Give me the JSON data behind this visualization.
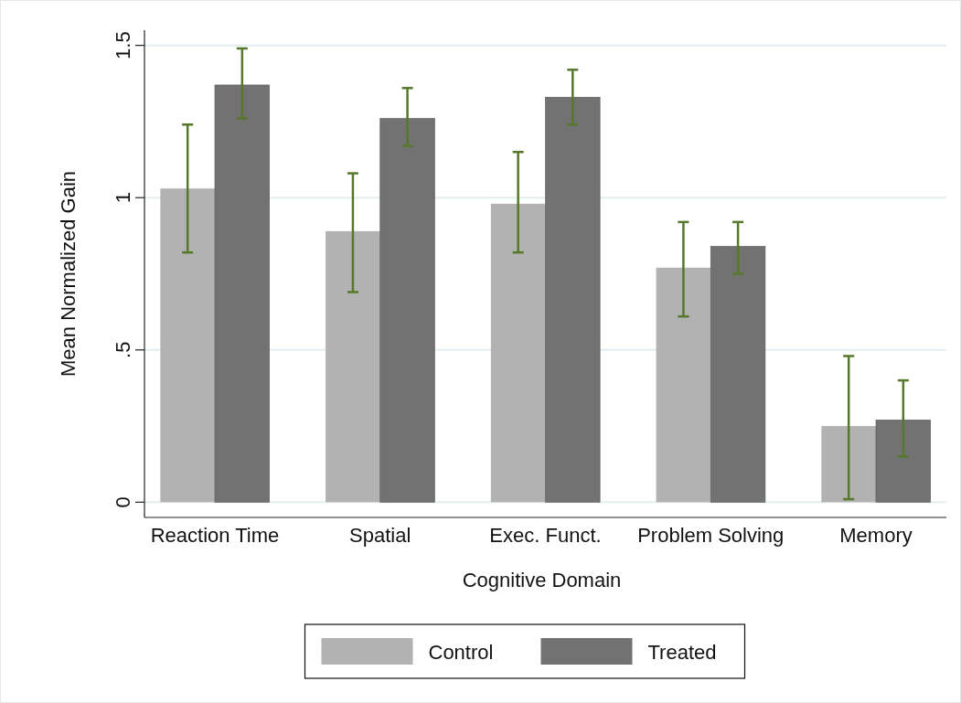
{
  "chart_data": {
    "type": "bar",
    "xlabel": "Cognitive Domain",
    "ylabel": "Mean Normalized Gain",
    "categories": [
      "Reaction Time",
      "Spatial",
      "Exec. Funct.",
      "Problem Solving",
      "Memory"
    ],
    "series": [
      {
        "name": "Control",
        "color": "#b2b2b2",
        "values": [
          1.03,
          0.89,
          0.98,
          0.77,
          0.25
        ],
        "errors": [
          [
            0.82,
            1.24
          ],
          [
            0.69,
            1.08
          ],
          [
            0.82,
            1.15
          ],
          [
            0.61,
            0.92
          ],
          [
            0.01,
            0.48
          ]
        ]
      },
      {
        "name": "Treated",
        "color": "#727272",
        "values": [
          1.37,
          1.26,
          1.33,
          0.84,
          0.27
        ],
        "errors": [
          [
            1.26,
            1.49
          ],
          [
            1.17,
            1.36
          ],
          [
            1.24,
            1.42
          ],
          [
            0.75,
            0.92
          ],
          [
            0.15,
            0.4
          ]
        ]
      }
    ],
    "ylim": [
      -0.05,
      1.55
    ],
    "yticks": [
      {
        "value": 0,
        "label": "0"
      },
      {
        "value": 0.5,
        "label": ".5"
      },
      {
        "value": 1,
        "label": "1"
      },
      {
        "value": 1.5,
        "label": "1.5"
      }
    ],
    "grid": "y",
    "legend": "bottom"
  }
}
